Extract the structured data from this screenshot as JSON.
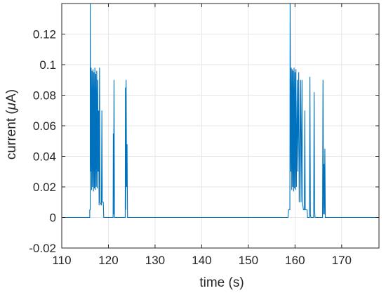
{
  "chart_data": {
    "type": "line",
    "title": "",
    "xlabel": "time (s)",
    "ylabel": "current (μA)",
    "ylabel_prefix": "current (",
    "ylabel_symbol": "μ",
    "ylabel_suffix": "A)",
    "xlim": [
      110,
      178
    ],
    "ylim": [
      -0.02,
      0.14
    ],
    "grid": true,
    "line_color": "#0072BD",
    "x_ticks": [
      110,
      120,
      130,
      140,
      150,
      160,
      170
    ],
    "x_tick_labels": [
      "110",
      "120",
      "130",
      "140",
      "150",
      "160",
      "170"
    ],
    "y_ticks": [
      -0.02,
      0,
      0.02,
      0.04,
      0.06,
      0.08,
      0.1,
      0.12
    ],
    "y_tick_labels": [
      "-0.02",
      "0",
      "0.02",
      "0.04",
      "0.06",
      "0.08",
      "0.1",
      "0.12"
    ],
    "series": [
      {
        "points": [
          [
            110,
            0
          ],
          [
            116.0,
            0
          ],
          [
            116.0,
            0.005
          ],
          [
            116.1,
            0.005
          ],
          [
            116.1,
            0.14
          ],
          [
            116.2,
            0.03
          ],
          [
            116.3,
            0.098
          ],
          [
            116.4,
            0.018
          ],
          [
            116.5,
            0.096
          ],
          [
            116.6,
            0.02
          ],
          [
            116.7,
            0.097
          ],
          [
            116.8,
            0.017
          ],
          [
            116.9,
            0.095
          ],
          [
            117.0,
            0.019
          ],
          [
            117.1,
            0.098
          ],
          [
            117.2,
            0.018
          ],
          [
            117.3,
            0.094
          ],
          [
            117.4,
            0.02
          ],
          [
            117.5,
            0.096
          ],
          [
            117.6,
            0.019
          ],
          [
            117.7,
            0.09
          ],
          [
            117.8,
            0.03
          ],
          [
            117.9,
            0.07
          ],
          [
            118.0,
            0.008
          ],
          [
            118.1,
            0.098
          ],
          [
            118.2,
            0.01
          ],
          [
            118.5,
            0.008
          ],
          [
            118.6,
            0.07
          ],
          [
            118.7,
            0.01
          ],
          [
            118.9,
            0.01
          ],
          [
            119.0,
            0
          ],
          [
            121.0,
            0
          ],
          [
            121.05,
            0.055
          ],
          [
            121.1,
            0.002
          ],
          [
            121.2,
            0.09
          ],
          [
            121.3,
            0
          ],
          [
            123.6,
            0
          ],
          [
            123.65,
            0.085
          ],
          [
            123.7,
            0.005
          ],
          [
            123.8,
            0.09
          ],
          [
            123.9,
            0.02
          ],
          [
            124.0,
            0.048
          ],
          [
            124.1,
            0
          ],
          [
            158.5,
            0
          ],
          [
            158.6,
            0.005
          ],
          [
            158.9,
            0.005
          ],
          [
            158.95,
            0.14
          ],
          [
            159.1,
            0.03
          ],
          [
            159.2,
            0.098
          ],
          [
            159.3,
            0.018
          ],
          [
            159.4,
            0.097
          ],
          [
            159.5,
            0.02
          ],
          [
            159.6,
            0.096
          ],
          [
            159.7,
            0.017
          ],
          [
            159.8,
            0.098
          ],
          [
            159.9,
            0.019
          ],
          [
            160.0,
            0.095
          ],
          [
            160.1,
            0.018
          ],
          [
            160.2,
            0.097
          ],
          [
            160.3,
            0.02
          ],
          [
            160.5,
            0.09
          ],
          [
            160.6,
            0.03
          ],
          [
            160.8,
            0.095
          ],
          [
            160.9,
            0.01
          ],
          [
            161.2,
            0.09
          ],
          [
            161.3,
            0.01
          ],
          [
            161.5,
            0.09
          ],
          [
            161.6,
            0.01
          ],
          [
            161.8,
            0.005
          ],
          [
            162.0,
            0.005
          ],
          [
            162.1,
            0.07
          ],
          [
            162.2,
            0.005
          ],
          [
            162.6,
            0.005
          ],
          [
            162.7,
            0
          ],
          [
            163.1,
            0
          ],
          [
            163.2,
            0.092
          ],
          [
            163.3,
            0.002
          ],
          [
            163.4,
            0
          ],
          [
            164.0,
            0
          ],
          [
            164.1,
            0.082
          ],
          [
            164.2,
            0.005
          ],
          [
            164.3,
            0
          ],
          [
            165.9,
            0
          ],
          [
            166.0,
            0.09
          ],
          [
            166.1,
            0.002
          ],
          [
            166.2,
            0.035
          ],
          [
            166.3,
            0.002
          ],
          [
            166.4,
            0.045
          ],
          [
            166.5,
            0
          ],
          [
            178,
            0
          ]
        ]
      }
    ]
  }
}
